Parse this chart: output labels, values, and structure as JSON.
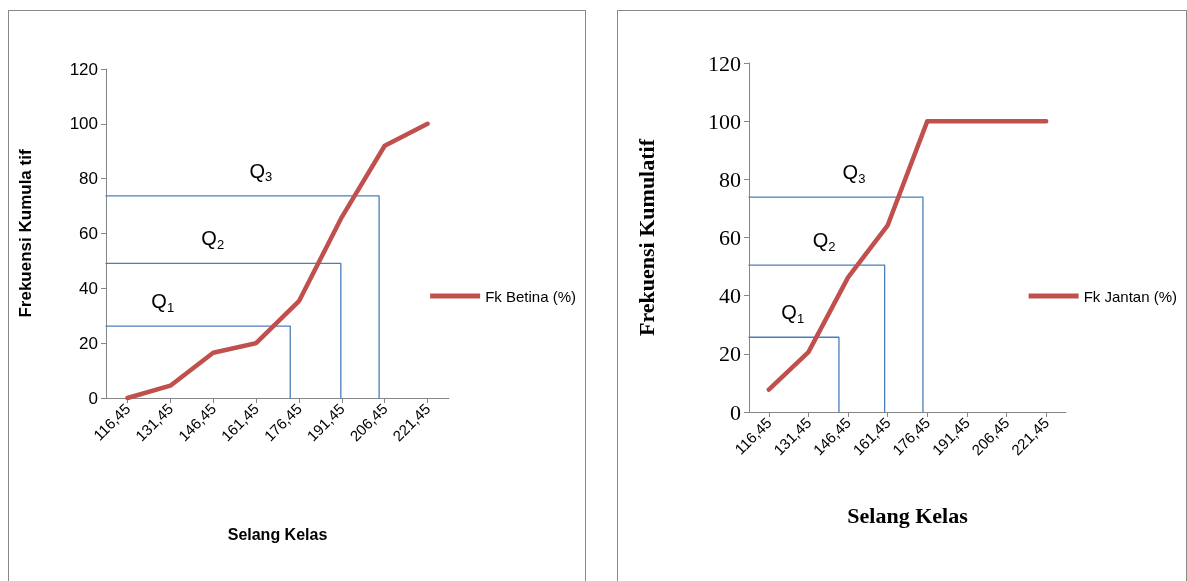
{
  "chart_data": [
    {
      "type": "line",
      "xlabel": "Selang Kelas",
      "ylabel": "Frekuensi Kumula tif",
      "x": [
        116.45,
        131.45,
        146.45,
        161.45,
        176.45,
        191.45,
        206.45,
        221.45
      ],
      "xlim": [
        108.95,
        228.95
      ],
      "xticks": [
        {
          "value": 116.45,
          "label": "116,45"
        },
        {
          "value": 131.45,
          "label": "131,45"
        },
        {
          "value": 146.45,
          "label": "146,45"
        },
        {
          "value": 161.45,
          "label": "161,45"
        },
        {
          "value": 176.45,
          "label": "176,45"
        },
        {
          "value": 191.45,
          "label": "191,45"
        },
        {
          "value": 206.45,
          "label": "206,45"
        },
        {
          "value": 221.45,
          "label": "221,45"
        }
      ],
      "ylim": [
        0,
        120
      ],
      "yticks": [
        0,
        20,
        40,
        60,
        80,
        100,
        120
      ],
      "series": [
        {
          "name": "Fk Betina (%)",
          "color": "#c0504d",
          "values": [
            0,
            4.5,
            16.5,
            20,
            35.3,
            66,
            92,
            100
          ]
        },
        {
          "type": "line",
          "color": "#4a7ebb",
          "x": [
            108.95,
            173.4,
            173.4
          ],
          "values": [
            26.2,
            26.2,
            0
          ]
        },
        {
          "type": "line",
          "color": "#4a7ebb",
          "x": [
            108.95,
            191.1,
            191.1
          ],
          "values": [
            49.1,
            49.1,
            0
          ]
        },
        {
          "type": "line",
          "color": "#4a7ebb",
          "x": [
            108.95,
            204.5,
            204.5
          ],
          "values": [
            73.7,
            73.7,
            0
          ]
        }
      ],
      "annotations": [
        {
          "text": "Q$_{1}$",
          "x": 128.8,
          "y": 26.2
        },
        {
          "text": "Q$_{2}$",
          "x": 146.3,
          "y": 49.1
        },
        {
          "text": "Q$_{3}$",
          "x": 163.1,
          "y": 73.7
        }
      ],
      "legend": "right",
      "grid": false,
      "marker": "none",
      "line_style": "solid"
    },
    {
      "type": "line",
      "xlabel": "Selang Kelas",
      "ylabel": "Frekuensi Kumulatif",
      "x": [
        116.45,
        131.45,
        146.45,
        161.45,
        176.45,
        191.45,
        206.45,
        221.45
      ],
      "xlim": [
        108.95,
        228.95
      ],
      "xticks": [
        {
          "value": 116.45,
          "label": "116,45"
        },
        {
          "value": 131.45,
          "label": "131,45"
        },
        {
          "value": 146.45,
          "label": "146,45"
        },
        {
          "value": 161.45,
          "label": "161,45"
        },
        {
          "value": 176.45,
          "label": "176,45"
        },
        {
          "value": 191.45,
          "label": "191,45"
        },
        {
          "value": 206.45,
          "label": "206,45"
        },
        {
          "value": 221.45,
          "label": "221,45"
        }
      ],
      "ylim": [
        0,
        120
      ],
      "yticks": [
        0,
        20,
        40,
        60,
        80,
        100,
        120
      ],
      "series": [
        {
          "name": "Fk Jantan (%)",
          "color": "#c0504d",
          "values": [
            7.7,
            20.6,
            46.3,
            64.2,
            100,
            100,
            100,
            100
          ]
        },
        {
          "type": "line",
          "color": "#4a7ebb",
          "x": [
            108.95,
            143,
            143
          ],
          "values": [
            25.7,
            25.7,
            0
          ]
        },
        {
          "type": "line",
          "color": "#4a7ebb",
          "x": [
            108.95,
            160.3,
            160.3
          ],
          "values": [
            50.5,
            50.5,
            0
          ]
        },
        {
          "type": "line",
          "color": "#4a7ebb",
          "x": [
            108.95,
            174.8,
            174.8
          ],
          "values": [
            73.9,
            73.9,
            0
          ]
        }
      ],
      "annotations": [
        {
          "text": "Q$_{1}$",
          "x": 125.5,
          "y": 25.7
        },
        {
          "text": "Q$_{2}$",
          "x": 137.4,
          "y": 50.5
        },
        {
          "text": "Q$_{3}$",
          "x": 148.7,
          "y": 73.9
        }
      ],
      "legend": "right",
      "grid": false,
      "marker": "none",
      "line_style": "solid"
    }
  ]
}
